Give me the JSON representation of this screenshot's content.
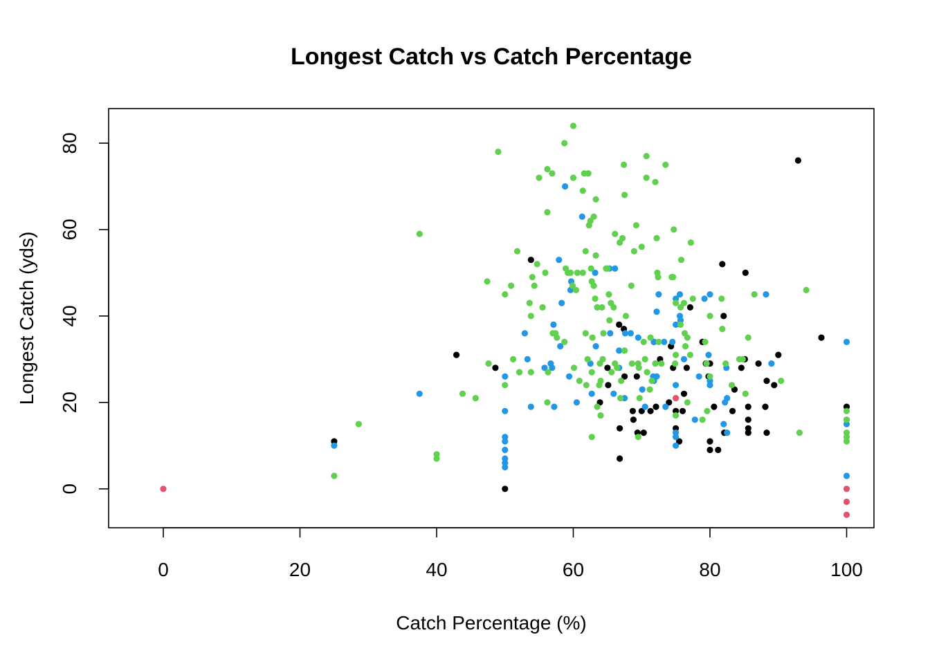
{
  "chart_data": {
    "type": "scatter",
    "title": "Longest Catch vs Catch Percentage",
    "xlabel": "Catch Percentage (%)",
    "ylabel": "Longest Catch (yds)",
    "xlim": [
      -8,
      104
    ],
    "ylim": [
      -9,
      88
    ],
    "x_ticks": [
      0,
      20,
      40,
      60,
      80,
      100
    ],
    "x_tick_labels": [
      "0",
      "20",
      "40",
      "60",
      "80",
      "100"
    ],
    "y_ticks": [
      0,
      20,
      40,
      60,
      80
    ],
    "y_tick_labels": [
      "0",
      "20",
      "40",
      "60",
      "80"
    ],
    "grid": false,
    "legend": "none",
    "series": [
      {
        "color": "#000000",
        "points": [
          [
            25,
            11
          ],
          [
            42.9,
            31
          ],
          [
            48.6,
            28
          ],
          [
            50,
            0
          ],
          [
            53.8,
            53
          ],
          [
            63.9,
            20
          ],
          [
            65,
            28
          ],
          [
            65.1,
            24
          ],
          [
            66.7,
            38
          ],
          [
            66.8,
            14
          ],
          [
            66.8,
            7
          ],
          [
            67.4,
            37
          ],
          [
            67.5,
            26
          ],
          [
            68.7,
            18
          ],
          [
            68.8,
            16
          ],
          [
            69.3,
            26
          ],
          [
            69.4,
            13
          ],
          [
            70,
            18
          ],
          [
            70.3,
            13
          ],
          [
            71.3,
            18
          ],
          [
            71.8,
            34
          ],
          [
            72.1,
            19
          ],
          [
            72.7,
            30
          ],
          [
            74,
            20
          ],
          [
            74.3,
            33
          ],
          [
            74.6,
            28
          ],
          [
            75,
            18
          ],
          [
            75,
            14
          ],
          [
            75.5,
            11
          ],
          [
            76,
            18
          ],
          [
            76.2,
            22
          ],
          [
            76.6,
            28
          ],
          [
            77.1,
            42
          ],
          [
            78.9,
            34
          ],
          [
            79.4,
            29
          ],
          [
            79.8,
            26
          ],
          [
            80,
            29
          ],
          [
            80,
            11
          ],
          [
            80,
            9
          ],
          [
            80.6,
            19
          ],
          [
            81.2,
            9
          ],
          [
            81.8,
            52
          ],
          [
            82,
            40
          ],
          [
            82.1,
            13
          ],
          [
            83.3,
            18
          ],
          [
            83.6,
            23
          ],
          [
            84.6,
            28
          ],
          [
            85.1,
            30
          ],
          [
            85.2,
            50
          ],
          [
            85.6,
            19
          ],
          [
            85.6,
            16
          ],
          [
            85.6,
            14
          ],
          [
            85.6,
            13
          ],
          [
            87.1,
            29
          ],
          [
            88.1,
            19
          ],
          [
            88.3,
            25
          ],
          [
            88.3,
            13
          ],
          [
            89.4,
            24
          ],
          [
            90,
            31
          ],
          [
            92.9,
            76
          ],
          [
            96.3,
            35
          ],
          [
            100,
            19
          ]
        ]
      },
      {
        "color": "#DF536B",
        "points": [
          [
            0,
            0
          ],
          [
            75,
            21
          ],
          [
            100,
            16
          ],
          [
            100,
            0
          ],
          [
            100,
            -3
          ],
          [
            100,
            -6
          ]
        ]
      },
      {
        "color": "#2297E6",
        "points": [
          [
            25,
            10
          ],
          [
            37.5,
            22
          ],
          [
            50,
            26
          ],
          [
            50,
            18
          ],
          [
            50,
            12
          ],
          [
            50,
            11
          ],
          [
            50,
            9
          ],
          [
            50,
            7
          ],
          [
            50,
            6
          ],
          [
            50,
            5
          ],
          [
            52.9,
            36
          ],
          [
            53.3,
            30
          ],
          [
            53.8,
            19
          ],
          [
            55.8,
            28
          ],
          [
            56.7,
            29
          ],
          [
            56.9,
            28
          ],
          [
            57.1,
            38
          ],
          [
            57.2,
            19
          ],
          [
            57.9,
            53
          ],
          [
            58.1,
            33
          ],
          [
            58.3,
            43
          ],
          [
            58.8,
            70
          ],
          [
            59.4,
            26
          ],
          [
            59.6,
            46
          ],
          [
            59.7,
            48
          ],
          [
            60.5,
            20
          ],
          [
            61.3,
            63
          ],
          [
            62.5,
            29
          ],
          [
            62.7,
            22
          ],
          [
            63.2,
            50
          ],
          [
            63.3,
            33
          ],
          [
            63.5,
            42
          ],
          [
            65.3,
            51
          ],
          [
            65.4,
            36
          ],
          [
            65.9,
            22
          ],
          [
            66.1,
            51
          ],
          [
            66.7,
            32
          ],
          [
            66.7,
            28
          ],
          [
            67.5,
            21
          ],
          [
            67.6,
            36
          ],
          [
            68.4,
            36
          ],
          [
            69.5,
            35
          ],
          [
            70.1,
            23
          ],
          [
            70.5,
            19
          ],
          [
            71.7,
            26
          ],
          [
            71.8,
            25
          ],
          [
            71.8,
            34
          ],
          [
            72.2,
            26
          ],
          [
            72.2,
            41
          ],
          [
            72.5,
            45
          ],
          [
            73.3,
            34
          ],
          [
            73.5,
            19
          ],
          [
            74.5,
            34
          ],
          [
            75,
            12
          ],
          [
            75,
            10
          ],
          [
            75,
            13
          ],
          [
            75,
            24
          ],
          [
            75,
            38
          ],
          [
            75,
            44
          ],
          [
            75.6,
            45
          ],
          [
            75.6,
            40
          ],
          [
            75.7,
            39
          ],
          [
            76.2,
            30
          ],
          [
            77.8,
            16
          ],
          [
            78.4,
            26
          ],
          [
            79.2,
            44
          ],
          [
            79.8,
            31
          ],
          [
            80,
            45
          ],
          [
            80,
            25
          ],
          [
            80,
            24
          ],
          [
            82,
            15
          ],
          [
            82.2,
            20
          ],
          [
            82.4,
            28
          ],
          [
            82.5,
            13
          ],
          [
            82.5,
            21
          ],
          [
            88.2,
            45
          ],
          [
            89,
            29
          ],
          [
            100,
            34
          ],
          [
            100,
            15
          ],
          [
            100,
            3
          ]
        ]
      },
      {
        "color": "#61D04F",
        "points": [
          [
            25,
            3
          ],
          [
            28.6,
            15
          ],
          [
            37.5,
            59
          ],
          [
            40,
            8
          ],
          [
            40,
            7
          ],
          [
            43.8,
            22
          ],
          [
            45.7,
            21
          ],
          [
            47.4,
            48
          ],
          [
            47.6,
            29
          ],
          [
            49,
            78
          ],
          [
            50,
            45
          ],
          [
            50,
            24
          ],
          [
            50.9,
            47
          ],
          [
            51.2,
            30
          ],
          [
            51.8,
            55
          ],
          [
            52.1,
            27
          ],
          [
            53.6,
            43
          ],
          [
            53.8,
            40
          ],
          [
            53.8,
            27
          ],
          [
            54,
            49
          ],
          [
            54.3,
            47
          ],
          [
            54.7,
            52
          ],
          [
            55,
            72
          ],
          [
            55.5,
            42
          ],
          [
            55.9,
            50
          ],
          [
            56.3,
            27
          ],
          [
            56.2,
            64
          ],
          [
            56.2,
            74
          ],
          [
            56.2,
            20
          ],
          [
            56.9,
            73
          ],
          [
            57,
            36
          ],
          [
            57.4,
            36
          ],
          [
            57.6,
            35
          ],
          [
            58.7,
            80
          ],
          [
            58.7,
            34
          ],
          [
            58.9,
            51
          ],
          [
            59.2,
            50
          ],
          [
            59.6,
            50
          ],
          [
            59.9,
            47
          ],
          [
            60,
            84
          ],
          [
            60,
            72
          ],
          [
            60.1,
            28
          ],
          [
            60.4,
            46
          ],
          [
            60.6,
            50
          ],
          [
            60.9,
            25
          ],
          [
            61.4,
            50
          ],
          [
            61.4,
            69
          ],
          [
            61.6,
            73
          ],
          [
            61.8,
            55
          ],
          [
            61.8,
            36
          ],
          [
            61.9,
            24
          ],
          [
            62.1,
            30
          ],
          [
            62.2,
            73
          ],
          [
            62.3,
            61
          ],
          [
            62.5,
            62
          ],
          [
            62.6,
            51
          ],
          [
            62.7,
            48
          ],
          [
            62.7,
            27
          ],
          [
            62.7,
            12
          ],
          [
            62.8,
            35
          ],
          [
            63,
            63
          ],
          [
            63,
            47
          ],
          [
            63.2,
            44
          ],
          [
            63.3,
            54
          ],
          [
            63.3,
            67
          ],
          [
            63.5,
            42
          ],
          [
            63.5,
            19
          ],
          [
            63.8,
            24
          ],
          [
            63.9,
            29
          ],
          [
            64,
            25
          ],
          [
            64,
            17
          ],
          [
            64.2,
            42
          ],
          [
            64.3,
            30
          ],
          [
            64.4,
            36
          ],
          [
            64.8,
            51
          ],
          [
            65,
            51
          ],
          [
            65.2,
            45
          ],
          [
            65.3,
            39
          ],
          [
            65.5,
            43
          ],
          [
            65.6,
            27
          ],
          [
            65.9,
            42
          ],
          [
            66.1,
            59
          ],
          [
            66.1,
            29
          ],
          [
            66.4,
            28
          ],
          [
            66.8,
            57
          ],
          [
            66.9,
            21
          ],
          [
            67,
            25
          ],
          [
            67.2,
            58
          ],
          [
            67.4,
            75
          ],
          [
            67.5,
            68
          ],
          [
            67.5,
            32
          ],
          [
            67.7,
            40
          ],
          [
            68.5,
            47
          ],
          [
            68.6,
            29
          ],
          [
            68.9,
            55
          ],
          [
            69.2,
            61
          ],
          [
            69.5,
            12
          ],
          [
            69.5,
            29
          ],
          [
            69.6,
            28
          ],
          [
            69.7,
            21
          ],
          [
            70,
            56
          ],
          [
            70.3,
            34
          ],
          [
            70.5,
            30
          ],
          [
            70.7,
            77
          ],
          [
            70.7,
            72
          ],
          [
            70.8,
            27
          ],
          [
            71.2,
            23
          ],
          [
            71.3,
            35
          ],
          [
            71.5,
            25
          ],
          [
            72,
            71
          ],
          [
            72,
            29
          ],
          [
            72.2,
            58
          ],
          [
            72.3,
            50
          ],
          [
            72.4,
            49
          ],
          [
            72.5,
            34
          ],
          [
            72.9,
            29
          ],
          [
            73.5,
            75
          ],
          [
            74.4,
            49
          ],
          [
            74.6,
            49
          ],
          [
            74.7,
            60
          ],
          [
            74.9,
            29
          ],
          [
            75,
            31
          ],
          [
            75,
            43
          ],
          [
            75,
            17
          ],
          [
            75.7,
            42
          ],
          [
            75.7,
            38
          ],
          [
            75.8,
            53
          ],
          [
            76.2,
            43
          ],
          [
            76.3,
            36
          ],
          [
            76.4,
            33
          ],
          [
            76.7,
            35
          ],
          [
            76.7,
            20
          ],
          [
            77.1,
            31
          ],
          [
            77.2,
            57
          ],
          [
            77.5,
            44
          ],
          [
            78.9,
            16
          ],
          [
            79.3,
            34
          ],
          [
            79.5,
            29
          ],
          [
            79.6,
            18
          ],
          [
            80,
            40
          ],
          [
            80,
            26
          ],
          [
            81.7,
            44
          ],
          [
            81.8,
            37
          ],
          [
            82.3,
            29
          ],
          [
            83.2,
            24
          ],
          [
            84.3,
            30
          ],
          [
            84.8,
            30
          ],
          [
            85.2,
            22
          ],
          [
            85.6,
            35
          ],
          [
            86.5,
            45
          ],
          [
            90.4,
            25
          ],
          [
            93.1,
            13
          ],
          [
            94.1,
            46
          ],
          [
            100,
            18
          ],
          [
            100,
            16
          ],
          [
            100,
            13
          ],
          [
            100,
            11
          ],
          [
            100,
            12
          ]
        ]
      }
    ]
  }
}
